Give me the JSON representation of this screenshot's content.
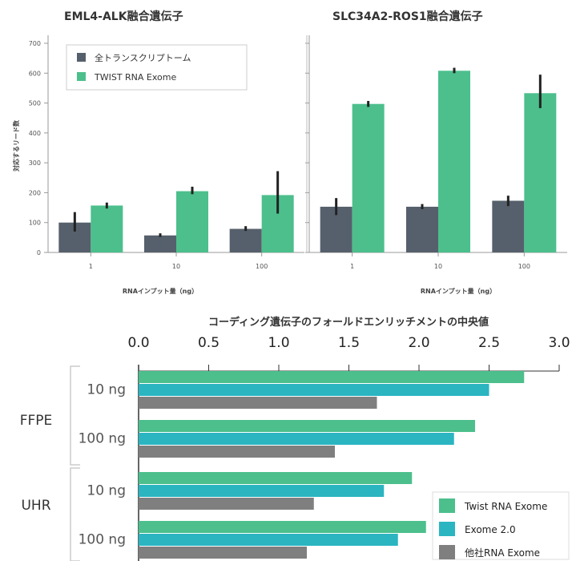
{
  "chart_data": [
    {
      "type": "bar",
      "title": "EML4-ALK融合遺伝子",
      "ylabel": "対応するリード数",
      "xlabel": "RNAインプット量（ng）",
      "categories": [
        "1",
        "10",
        "100"
      ],
      "ylim": [
        0,
        700
      ],
      "yticks": [
        0,
        100,
        200,
        300,
        400,
        500,
        600,
        700
      ],
      "legend_position": "top-left",
      "series": [
        {
          "name": "全トランスクリプトーム",
          "color": "#56606c",
          "values": [
            100,
            57,
            79
          ],
          "err_low": [
            70,
            52,
            72
          ],
          "err_high": [
            135,
            64,
            88
          ]
        },
        {
          "name": "TWIST RNA Exome",
          "color": "#4cbf8c",
          "values": [
            157,
            205,
            192
          ],
          "err_low": [
            147,
            195,
            130
          ],
          "err_high": [
            167,
            220,
            272
          ]
        }
      ]
    },
    {
      "type": "bar",
      "title": "SLC34A2-ROS1融合遺伝子",
      "xlabel": "RNAインプット量（ng）",
      "categories": [
        "1",
        "10",
        "100"
      ],
      "ylim": [
        0,
        700
      ],
      "series": [
        {
          "name": "全トランスクリプトーム",
          "color": "#56606c",
          "values": [
            153,
            153,
            173
          ],
          "err_low": [
            125,
            145,
            155
          ],
          "err_high": [
            182,
            162,
            190
          ]
        },
        {
          "name": "TWIST RNA Exome",
          "color": "#4cbf8c",
          "values": [
            497,
            608,
            533
          ],
          "err_low": [
            487,
            600,
            483
          ],
          "err_high": [
            507,
            618,
            595
          ]
        }
      ]
    },
    {
      "type": "bar",
      "orientation": "horizontal",
      "title": "コーディング遺伝子のフォールドエンリッチメントの中央値",
      "xlim": [
        0,
        3.0
      ],
      "xticks": [
        "0.0",
        "0.5",
        "1.0",
        "1.5",
        "2.0",
        "2.5",
        "3.0"
      ],
      "legend_position": "bottom-right",
      "groups": [
        {
          "name": "FFPE",
          "categories": [
            {
              "label": "10 ng",
              "values": [
                2.75,
                2.5,
                1.7
              ]
            },
            {
              "label": "100 ng",
              "values": [
                2.4,
                2.25,
                1.4
              ]
            }
          ]
        },
        {
          "name": "UHR",
          "categories": [
            {
              "label": "10 ng",
              "values": [
                1.95,
                1.75,
                1.25
              ]
            },
            {
              "label": "100 ng",
              "values": [
                2.05,
                1.85,
                1.2
              ]
            }
          ]
        }
      ],
      "series": [
        {
          "name": "Twist RNA Exome",
          "color": "#4cbf8c"
        },
        {
          "name": "Exome 2.0",
          "color": "#2ab5c1"
        },
        {
          "name": "他社RNA Exome",
          "color": "#7f7f7f"
        }
      ]
    }
  ]
}
